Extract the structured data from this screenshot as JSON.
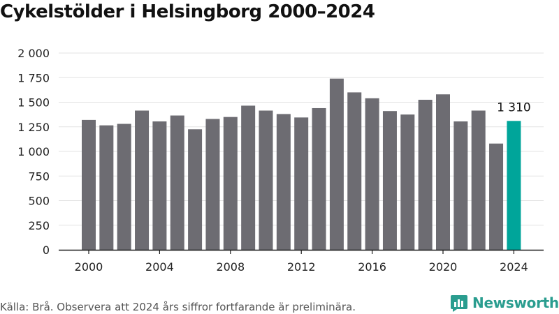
{
  "title": "Cykelstölder i Helsingborg 2000–2024",
  "source": "Källa: Brå. Observera att 2024 års siffror fortfarande är preliminära.",
  "brand": "Newsworthy",
  "colors": {
    "bar": "#6d6c72",
    "highlight": "#00a59a",
    "grid": "#e3e3e3",
    "axis": "#1a1a1a",
    "brand": "#2a9d8f"
  },
  "chart_data": {
    "type": "bar",
    "title": "Cykelstölder i Helsingborg 2000–2024",
    "xlabel": "",
    "ylabel": "",
    "categories": [
      "2000",
      "2001",
      "2002",
      "2003",
      "2004",
      "2005",
      "2006",
      "2007",
      "2008",
      "2009",
      "2010",
      "2011",
      "2012",
      "2013",
      "2014",
      "2015",
      "2016",
      "2017",
      "2018",
      "2019",
      "2020",
      "2021",
      "2022",
      "2023",
      "2024"
    ],
    "values": [
      1320,
      1265,
      1280,
      1415,
      1305,
      1365,
      1225,
      1330,
      1350,
      1465,
      1415,
      1380,
      1345,
      1440,
      1740,
      1600,
      1540,
      1410,
      1375,
      1525,
      1580,
      1305,
      1415,
      1080,
      1310
    ],
    "highlight_index": 24,
    "highlight_label": "1 310",
    "ylim": [
      0,
      2000
    ],
    "yticks": [
      0,
      250,
      500,
      750,
      1000,
      1250,
      1500,
      1750,
      2000
    ],
    "ytick_labels": [
      "0",
      "250",
      "500",
      "750",
      "1 000",
      "1 250",
      "1 500",
      "1 750",
      "2 000"
    ],
    "xtick_labels": [
      "2000",
      "2004",
      "2008",
      "2012",
      "2016",
      "2020",
      "2024"
    ],
    "grid": true,
    "legend": "none"
  }
}
